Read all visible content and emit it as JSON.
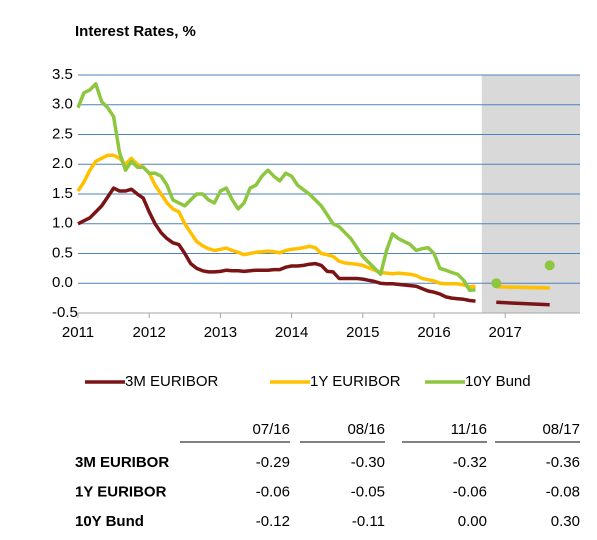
{
  "chart_data": {
    "type": "line",
    "title": "Interest Rates, %",
    "x": [
      2011.0,
      2011.083,
      2011.167,
      2011.25,
      2011.333,
      2011.417,
      2011.5,
      2011.583,
      2011.667,
      2011.75,
      2011.833,
      2011.917,
      2012.0,
      2012.083,
      2012.167,
      2012.25,
      2012.333,
      2012.417,
      2012.5,
      2012.583,
      2012.667,
      2012.75,
      2012.833,
      2012.917,
      2013.0,
      2013.083,
      2013.167,
      2013.25,
      2013.333,
      2013.417,
      2013.5,
      2013.583,
      2013.667,
      2013.75,
      2013.833,
      2013.917,
      2014.0,
      2014.083,
      2014.167,
      2014.25,
      2014.333,
      2014.417,
      2014.5,
      2014.583,
      2014.667,
      2014.75,
      2014.833,
      2014.917,
      2015.0,
      2015.083,
      2015.167,
      2015.25,
      2015.333,
      2015.417,
      2015.5,
      2015.583,
      2015.667,
      2015.75,
      2015.833,
      2015.917,
      2016.0,
      2016.083,
      2016.167,
      2016.25,
      2016.333,
      2016.417,
      2016.5,
      2016.583
    ],
    "forecast_x": [
      2016.875,
      2017.625
    ],
    "series": [
      {
        "name": "3M EURIBOR",
        "color": "#7b1416",
        "forecast_style": "line",
        "values": [
          1.0,
          1.05,
          1.1,
          1.2,
          1.3,
          1.45,
          1.6,
          1.55,
          1.55,
          1.58,
          1.5,
          1.43,
          1.2,
          1.0,
          0.85,
          0.75,
          0.68,
          0.65,
          0.5,
          0.33,
          0.25,
          0.21,
          0.19,
          0.19,
          0.2,
          0.22,
          0.21,
          0.21,
          0.2,
          0.21,
          0.22,
          0.22,
          0.22,
          0.23,
          0.23,
          0.27,
          0.29,
          0.29,
          0.3,
          0.32,
          0.33,
          0.3,
          0.2,
          0.19,
          0.08,
          0.08,
          0.08,
          0.08,
          0.07,
          0.05,
          0.03,
          0.0,
          -0.01,
          -0.01,
          -0.02,
          -0.03,
          -0.04,
          -0.05,
          -0.09,
          -0.13,
          -0.15,
          -0.18,
          -0.23,
          -0.25,
          -0.26,
          -0.27,
          -0.29,
          -0.3
        ],
        "forecast": [
          -0.32,
          -0.36
        ]
      },
      {
        "name": "1Y EURIBOR",
        "color": "#ffc000",
        "forecast_style": "line",
        "values": [
          1.55,
          1.7,
          1.9,
          2.05,
          2.1,
          2.15,
          2.15,
          2.1,
          2.0,
          2.1,
          2.0,
          1.95,
          1.85,
          1.65,
          1.5,
          1.35,
          1.25,
          1.2,
          1.0,
          0.85,
          0.7,
          0.63,
          0.58,
          0.55,
          0.57,
          0.59,
          0.55,
          0.52,
          0.48,
          0.5,
          0.52,
          0.53,
          0.54,
          0.53,
          0.51,
          0.55,
          0.57,
          0.58,
          0.6,
          0.62,
          0.6,
          0.5,
          0.48,
          0.45,
          0.37,
          0.34,
          0.33,
          0.32,
          0.3,
          0.26,
          0.22,
          0.18,
          0.17,
          0.16,
          0.17,
          0.16,
          0.15,
          0.13,
          0.08,
          0.06,
          0.04,
          0.0,
          -0.01,
          -0.01,
          -0.01,
          -0.03,
          -0.06,
          -0.05
        ],
        "forecast": [
          -0.06,
          -0.08
        ]
      },
      {
        "name": "10Y Bund",
        "color": "#8dc63f",
        "forecast_style": "dots",
        "values": [
          2.95,
          3.2,
          3.25,
          3.35,
          3.05,
          2.95,
          2.8,
          2.2,
          1.9,
          2.05,
          1.95,
          1.95,
          1.85,
          1.85,
          1.8,
          1.65,
          1.4,
          1.35,
          1.3,
          1.4,
          1.5,
          1.5,
          1.4,
          1.35,
          1.55,
          1.6,
          1.4,
          1.25,
          1.35,
          1.6,
          1.65,
          1.8,
          1.9,
          1.8,
          1.72,
          1.85,
          1.8,
          1.65,
          1.57,
          1.5,
          1.4,
          1.3,
          1.15,
          1.0,
          0.95,
          0.85,
          0.75,
          0.6,
          0.45,
          0.35,
          0.25,
          0.15,
          0.55,
          0.83,
          0.75,
          0.7,
          0.65,
          0.55,
          0.58,
          0.6,
          0.5,
          0.25,
          0.22,
          0.18,
          0.15,
          0.05,
          -0.12,
          -0.11
        ],
        "forecast": [
          0.0,
          0.3
        ]
      }
    ],
    "shade_from": 2016.67,
    "xlim": [
      2011,
      2018.05
    ],
    "xticks": [
      2011,
      2012,
      2013,
      2014,
      2015,
      2016,
      2017
    ],
    "ylim": [
      -0.5,
      3.5
    ],
    "yticks": [
      -0.5,
      {
        "value": 0,
        "label": "0.0"
      },
      0.5,
      {
        "value": 1,
        "label": "1.0"
      },
      1.5,
      {
        "value": 2,
        "label": "2.0"
      },
      2.5,
      {
        "value": 3,
        "label": "3.0"
      },
      3.5
    ],
    "grid": true,
    "grid_color": "#4f81bd",
    "shade_color": "#d9d9d9"
  },
  "table": {
    "columns": [
      "07/16",
      "08/16",
      "11/16",
      "08/17"
    ],
    "rows": [
      {
        "label": "3M EURIBOR",
        "values": [
          "-0.29",
          "-0.30",
          "-0.32",
          "-0.36"
        ]
      },
      {
        "label": "1Y EURIBOR",
        "values": [
          "-0.06",
          "-0.05",
          "-0.06",
          "-0.08"
        ]
      },
      {
        "label": "10Y Bund",
        "values": [
          "-0.12",
          "-0.11",
          "0.00",
          "0.30"
        ]
      }
    ]
  }
}
